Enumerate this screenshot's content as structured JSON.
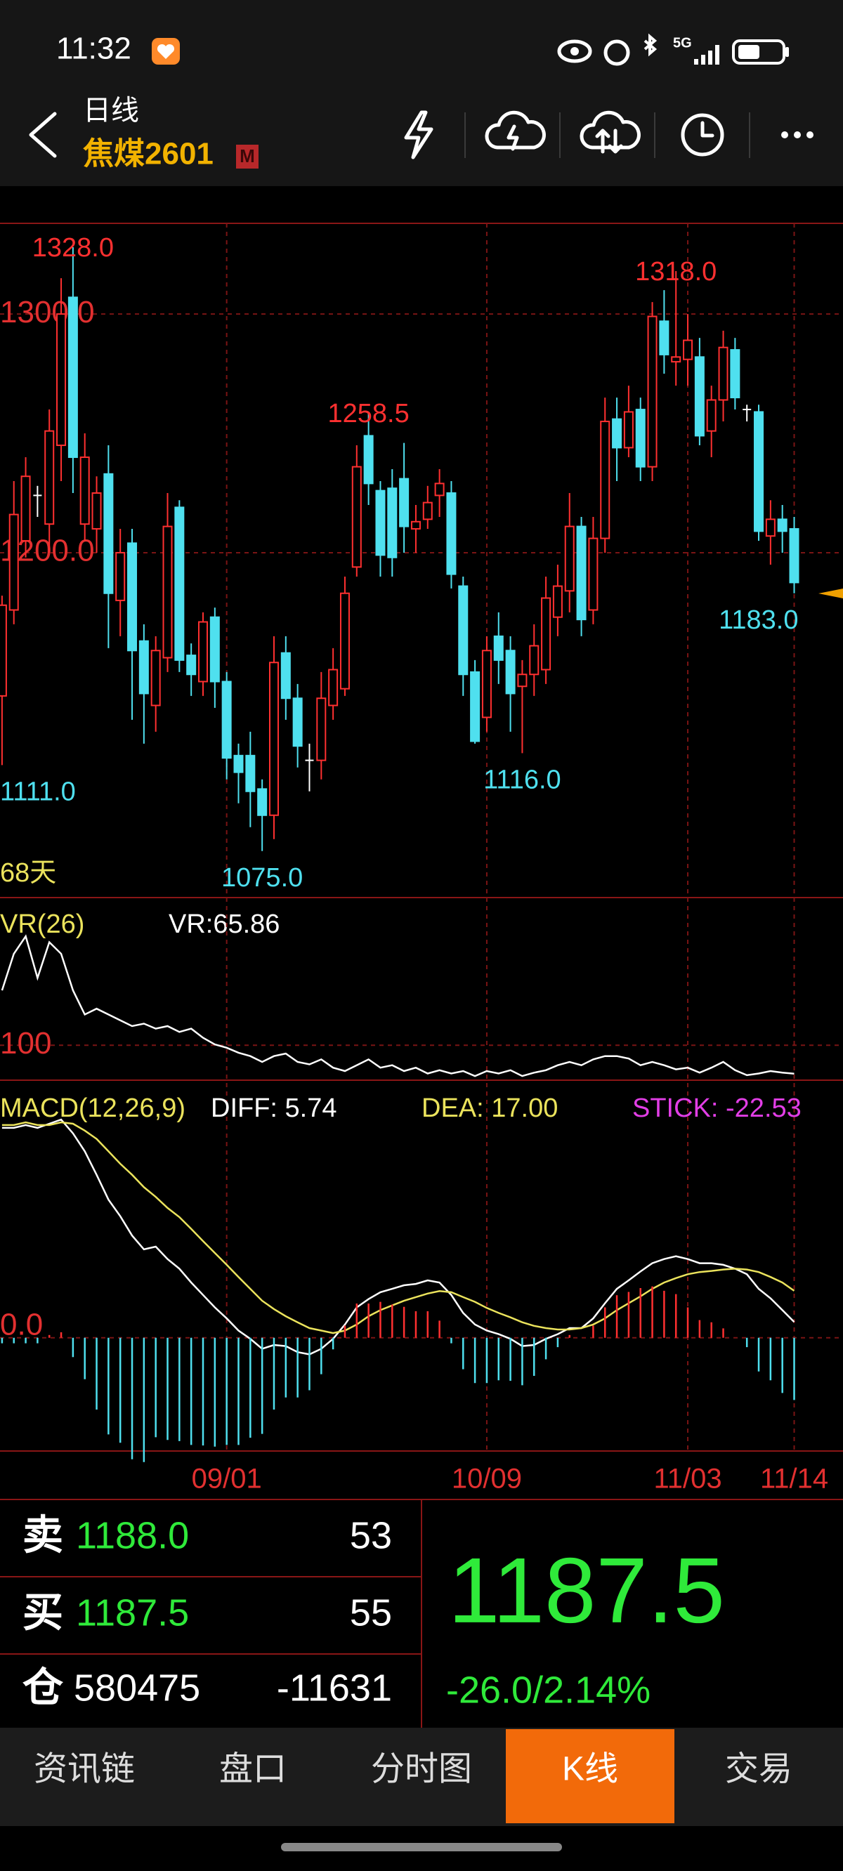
{
  "status_bar": {
    "time": "11:32",
    "network": "5G"
  },
  "header": {
    "period": "日线",
    "symbol": "焦煤2601",
    "badge": "M"
  },
  "chart_data": [
    {
      "type": "candlestick",
      "categories": [
        null,
        null,
        null,
        null,
        null,
        null,
        null,
        null,
        null,
        null,
        null,
        null,
        null,
        null,
        null,
        null,
        null,
        null,
        null,
        "09/01",
        null,
        null,
        null,
        null,
        null,
        null,
        null,
        null,
        null,
        null,
        null,
        null,
        null,
        null,
        null,
        null,
        null,
        null,
        null,
        null,
        null,
        "10/09",
        null,
        null,
        null,
        null,
        null,
        null,
        null,
        null,
        null,
        null,
        null,
        null,
        null,
        null,
        null,
        null,
        "11/03",
        null,
        null,
        null,
        null,
        null,
        null,
        null,
        null,
        "11/14"
      ],
      "open": [
        1140,
        1176,
        1205,
        1224,
        1212,
        1245,
        1307,
        1212,
        1210,
        1233,
        1180,
        1204,
        1163,
        1136,
        1156,
        1219,
        1157,
        1146,
        1173,
        1146,
        1115,
        1115,
        1101,
        1090,
        1158,
        1139,
        1113,
        1113,
        1136,
        1143,
        1194,
        1249,
        1226,
        1227,
        1231,
        1210,
        1214,
        1224,
        1225,
        1186,
        1150,
        1131,
        1165,
        1159,
        1144,
        1149,
        1151,
        1173,
        1184,
        1211,
        1176,
        1206,
        1256,
        1244,
        1260,
        1236,
        1297,
        1280,
        1281,
        1282,
        1251,
        1264,
        1285,
        1260,
        1259,
        1207,
        1214,
        1210
      ],
      "high": [
        1182,
        1230,
        1240,
        1228,
        1260,
        1315,
        1328,
        1250,
        1232,
        1245,
        1210,
        1210,
        1170,
        1165,
        1225,
        1222,
        1162,
        1175,
        1177,
        1150,
        1120,
        1125,
        1105,
        1165,
        1165,
        1145,
        1120,
        1150,
        1160,
        1190,
        1245,
        1258.5,
        1230,
        1235,
        1246,
        1220,
        1228,
        1235,
        1230,
        1190,
        1155,
        1165,
        1175,
        1165,
        1155,
        1170,
        1190,
        1195,
        1225,
        1215,
        1215,
        1265,
        1265,
        1270,
        1265,
        1305,
        1310,
        1318,
        1300,
        1290,
        1270,
        1293,
        1290,
        1262,
        1262,
        1222,
        1220,
        1215
      ],
      "low": [
        1111,
        1170,
        1198,
        1215,
        1200,
        1230,
        1225,
        1205,
        1200,
        1160,
        1165,
        1130,
        1120,
        1125,
        1150,
        1150,
        1140,
        1140,
        1135,
        1105,
        1095,
        1085,
        1075,
        1080,
        1130,
        1110,
        1100,
        1105,
        1130,
        1140,
        1190,
        1220,
        1190,
        1190,
        1200,
        1200,
        1210,
        1215,
        1185,
        1140,
        1120,
        1125,
        1145,
        1125,
        1116,
        1140,
        1145,
        1165,
        1175,
        1165,
        1170,
        1200,
        1230,
        1240,
        1230,
        1230,
        1275,
        1270,
        1270,
        1245,
        1240,
        1255,
        1260,
        1255,
        1205,
        1195,
        1200,
        1183
      ],
      "close": [
        1178,
        1216,
        1232,
        1224,
        1251,
        1300,
        1240,
        1240,
        1225,
        1183,
        1200,
        1159,
        1141,
        1159,
        1211,
        1155,
        1149,
        1171,
        1146,
        1114,
        1108,
        1100,
        1090,
        1154,
        1139,
        1119,
        1113,
        1139,
        1151,
        1183,
        1236,
        1229,
        1199,
        1198,
        1211,
        1213,
        1221,
        1229,
        1191,
        1149,
        1121,
        1159,
        1155,
        1141,
        1149,
        1161,
        1181,
        1186,
        1211,
        1172,
        1206,
        1255,
        1244,
        1259,
        1236,
        1299,
        1283,
        1282,
        1289,
        1249,
        1264,
        1286,
        1265,
        1260,
        1209,
        1214,
        1209,
        1187.5
      ],
      "up_color": "#ff3030",
      "down_color": "#4fe0ef",
      "doji_color": "#ffffff",
      "ylim": [
        1055.5,
        1338
      ],
      "yticks": [
        {
          "value": 1300,
          "label": "1300.0"
        },
        {
          "value": 1200,
          "label": "1200.0"
        }
      ],
      "annotations": [
        {
          "value": 1328,
          "label": "1328.0"
        },
        {
          "value": 1258.5,
          "label": "1258.5"
        },
        {
          "value": 1318,
          "label": "1318.0"
        },
        {
          "value": 1111,
          "label": "1111.0"
        },
        {
          "value": 1075,
          "label": "1075.0"
        },
        {
          "value": 1116,
          "label": "1116.0"
        },
        {
          "value": 1183,
          "label": "1183.0"
        }
      ],
      "days_label": "68天",
      "grid": true
    },
    {
      "type": "line",
      "title": "VR(26)",
      "readout": "VR:65.86",
      "color": "#ffffff",
      "values": [
        166,
        210,
        231,
        181,
        224,
        210,
        166,
        137,
        144,
        137,
        130,
        123,
        126,
        120,
        123,
        116,
        120,
        109,
        101,
        97,
        91,
        87,
        80,
        87,
        90,
        80,
        77,
        83,
        73,
        69,
        76,
        83,
        73,
        76,
        69,
        73,
        66,
        70,
        66,
        69,
        63,
        69,
        66,
        70,
        63,
        67,
        70,
        76,
        80,
        76,
        83,
        87,
        87,
        84,
        76,
        80,
        76,
        71,
        73,
        67,
        73,
        80,
        70,
        64,
        66,
        69,
        67,
        65.86
      ],
      "ylim": [
        58,
        270
      ],
      "yticks": [
        100
      ],
      "grid": true
    },
    {
      "type": "macd",
      "title": "MACD(12,26,9)",
      "series": [
        {
          "label": "DIFF: 5.74",
          "color": "#ffffff",
          "kind": "line",
          "values": [
            76,
            76,
            77,
            76,
            77.5,
            79,
            74,
            67.5,
            59,
            50,
            44,
            37,
            32,
            33,
            28.5,
            25,
            20,
            15.5,
            11,
            7,
            2.6,
            -0.4,
            -4,
            -2.6,
            -3,
            -5.2,
            -6,
            -4,
            -0.4,
            4.8,
            11,
            14,
            16.5,
            17.7,
            19,
            19.5,
            20.8,
            20,
            15.5,
            9,
            4.8,
            2.6,
            1.3,
            -0.4,
            -3,
            -2.6,
            -0.4,
            1.3,
            3.5,
            3.5,
            7,
            12.5,
            17.7,
            20.8,
            24,
            27,
            28.5,
            29.5,
            28.5,
            27,
            27,
            26.4,
            25,
            23,
            17.7,
            14.3,
            10,
            5.74
          ]
        },
        {
          "label": "DEA: 17.00",
          "color": "#ebe35c",
          "kind": "line",
          "values": [
            77,
            77,
            78,
            77,
            77,
            78,
            77.5,
            75,
            72,
            67.5,
            63,
            59,
            54.5,
            51,
            47,
            43.7,
            39.4,
            35,
            30.7,
            26.4,
            22,
            17.7,
            13.4,
            10.4,
            7.8,
            5.6,
            3.5,
            2.6,
            1.7,
            2.6,
            4.8,
            7.8,
            10,
            11.7,
            13.4,
            14.7,
            16,
            16.9,
            16.5,
            14.7,
            13,
            10.8,
            9,
            7.4,
            5.6,
            4.3,
            3.5,
            3,
            3,
            3.5,
            4.8,
            7,
            10,
            12.5,
            15,
            17.7,
            20,
            21.6,
            23,
            23.8,
            24.2,
            24.7,
            25,
            24.7,
            23.8,
            22,
            20,
            17
          ]
        },
        {
          "label": "STICK: -22.53",
          "color": "#e23ee6",
          "kind": "bar",
          "up_color": "#ff3030",
          "down_color": "#4fe0ef",
          "values": [
            -2,
            -2,
            -2,
            -2,
            1,
            2,
            -7,
            -15,
            -26,
            -35,
            -38,
            -44,
            -45,
            -36,
            -37,
            -37.4,
            -38.8,
            -39,
            -39.4,
            -38.8,
            -38.8,
            -36.2,
            -34.8,
            -26,
            -21.6,
            -21.6,
            -19,
            -13.2,
            -4.2,
            4.4,
            12.4,
            12.4,
            13,
            12,
            11.2,
            9.6,
            9.6,
            6.2,
            -2,
            -11.4,
            -16.4,
            -16.4,
            -15.4,
            -15.6,
            -17.2,
            -13.8,
            -7.8,
            -3.4,
            1,
            0,
            4.4,
            11,
            15.4,
            16.6,
            18,
            18.6,
            17,
            15.8,
            11,
            6.4,
            5.6,
            3.4,
            0,
            -3.4,
            -12.2,
            -15.4,
            -20,
            -22.53
          ]
        }
      ],
      "ylim": [
        -41,
        78
      ],
      "yticks": [
        {
          "value": 0,
          "label": "0.0"
        }
      ],
      "grid": true
    }
  ],
  "quote": {
    "sell": {
      "label": "卖",
      "price": "1188.0",
      "volume": "53"
    },
    "buy": {
      "label": "买",
      "price": "1187.5",
      "volume": "55"
    },
    "open_interest": {
      "label": "仓",
      "value": "580475",
      "change": "-11631"
    },
    "last": "1187.5",
    "change": "-26.0/2.14%"
  },
  "tabs": [
    "资讯链",
    "盘口",
    "分时图",
    "K线",
    "交易"
  ]
}
